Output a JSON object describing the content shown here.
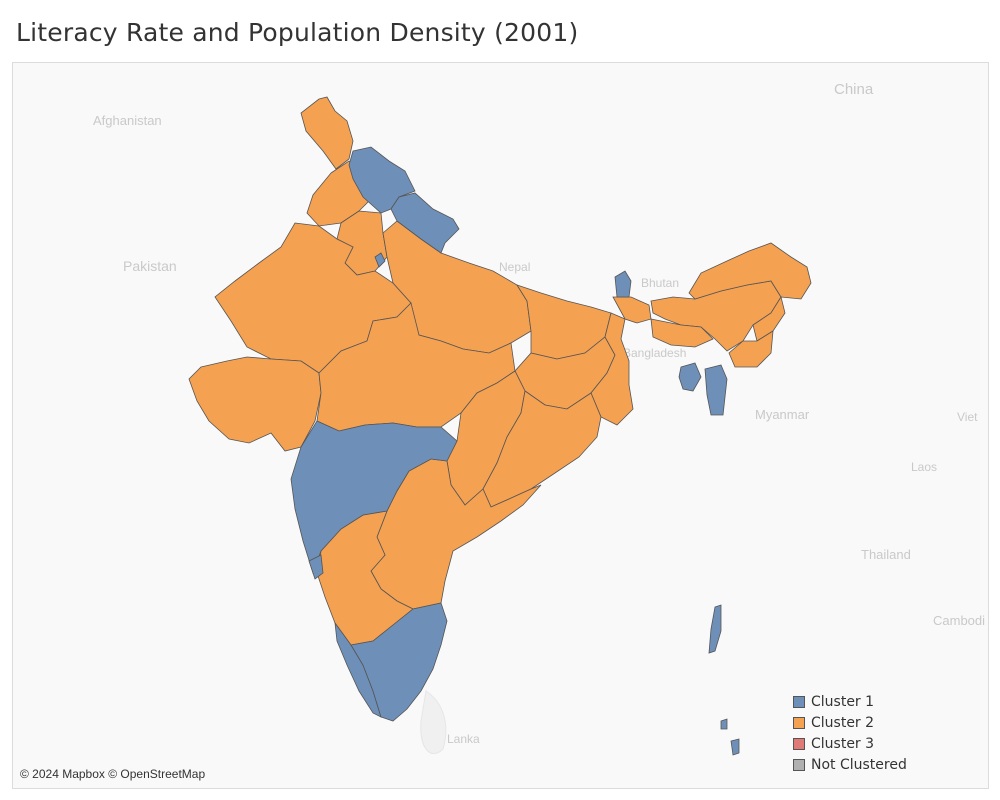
{
  "title": "Literacy Rate and Population Density (2001)",
  "colors": {
    "cluster1": "#6e8fb7",
    "cluster2": "#f4a152",
    "cluster3": "#e07a77",
    "not_clustered": "#b0b0b0",
    "border": "#555555",
    "background": "#f9f9f9"
  },
  "base_map_labels": {
    "afghanistan": "Afghanistan",
    "pakistan": "Pakistan",
    "china": "China",
    "nepal": "Nepal",
    "bhutan": "Bhutan",
    "bangladesh": "Bangladesh",
    "myanmar": "Myanmar",
    "laos": "Laos",
    "thailand": "Thailand",
    "cambodia": "Cambodi",
    "vietnam": "Viet",
    "sri_lanka": "Sri Lanka"
  },
  "legend": {
    "items": [
      {
        "label": "Cluster 1",
        "color": "#6e8fb7"
      },
      {
        "label": "Cluster 2",
        "color": "#f4a152"
      },
      {
        "label": "Cluster 3",
        "color": "#e07a77"
      },
      {
        "label": "Not Clustered",
        "color": "#b0b0b0"
      }
    ]
  },
  "regions": {
    "cluster1": [
      "Himachal Pradesh",
      "Uttaranchal",
      "Delhi",
      "Sikkim",
      "Tripura",
      "Mizoram",
      "Maharashtra",
      "Goa",
      "Kerala",
      "Tamil Nadu",
      "Andaman and Nicobar Islands"
    ],
    "cluster2": [
      "Jammu and Kashmir",
      "Punjab",
      "Haryana",
      "Rajasthan",
      "Gujarat",
      "Uttar Pradesh",
      "Madhya Pradesh",
      "Bihar",
      "Jharkhand",
      "West Bengal",
      "Orissa",
      "Chhattisgarh",
      "Andhra Pradesh",
      "Karnataka",
      "Assam",
      "Arunachal Pradesh",
      "Meghalaya",
      "Nagaland",
      "Manipur"
    ]
  },
  "attribution": "© 2024 Mapbox © OpenStreetMap"
}
